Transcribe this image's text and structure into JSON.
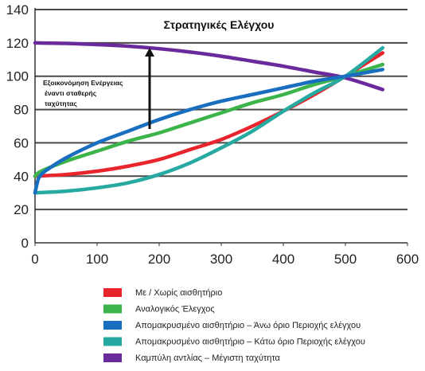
{
  "chart_data": {
    "type": "line",
    "title": "Στρατηγικές Ελέγχου",
    "annotation": [
      "Εξοικονόμηση Ενέργειας",
      "έναντι σταθερής",
      "ταχύτητας"
    ],
    "xlim": [
      0,
      600
    ],
    "ylim": [
      0,
      140
    ],
    "x_ticks": [
      0,
      100,
      200,
      300,
      400,
      500,
      600
    ],
    "y_ticks": [
      0,
      20,
      40,
      60,
      80,
      100,
      120,
      140
    ],
    "grid": "horizontal",
    "legend_position": "bottom",
    "series": [
      {
        "name": "Με / Χωρίς αισθητήριο",
        "color": "#e8242c",
        "x": [
          0,
          50,
          100,
          150,
          200,
          250,
          300,
          350,
          400,
          450,
          500,
          560
        ],
        "y": [
          40,
          41,
          43,
          46,
          50,
          56,
          62,
          70,
          79,
          89,
          100,
          114
        ]
      },
      {
        "name": "Αναλογικός Έλεγχος",
        "color": "#3cb44a",
        "x": [
          0,
          10,
          50,
          100,
          150,
          200,
          250,
          300,
          350,
          400,
          450,
          500,
          560
        ],
        "y": [
          40,
          43,
          49,
          55,
          61,
          66,
          72,
          78,
          84,
          89,
          95,
          100,
          107
        ]
      },
      {
        "name": "Απομακρυσμένο αισθητήριο – Άνω όριο Περιοχής ελέγχου",
        "color": "#1a6ebf",
        "x": [
          0,
          5,
          10,
          20,
          50,
          100,
          150,
          200,
          250,
          300,
          350,
          400,
          450,
          500,
          560
        ],
        "y": [
          30,
          38,
          41,
          44,
          51,
          60,
          67,
          74,
          80,
          85,
          89,
          93,
          97,
          100,
          104
        ]
      },
      {
        "name": "Απομακρυσμένο αισθητήριο – Κάτω όριο Περιοχής ελέγχου",
        "color": "#25a9a0",
        "x": [
          0,
          50,
          100,
          150,
          200,
          250,
          300,
          350,
          400,
          450,
          500,
          560
        ],
        "y": [
          30,
          31,
          33,
          36,
          41,
          48,
          57,
          67,
          79,
          90,
          100,
          117
        ]
      },
      {
        "name": "Καμπύλη αντλίας – Μέγιστη ταχύτητα",
        "color": "#6a2a9b",
        "x": [
          0,
          50,
          100,
          150,
          200,
          250,
          300,
          350,
          400,
          450,
          500,
          560
        ],
        "y": [
          120,
          119.7,
          119,
          118,
          116.5,
          114.5,
          112,
          109,
          106,
          102.5,
          99,
          92
        ]
      }
    ]
  }
}
